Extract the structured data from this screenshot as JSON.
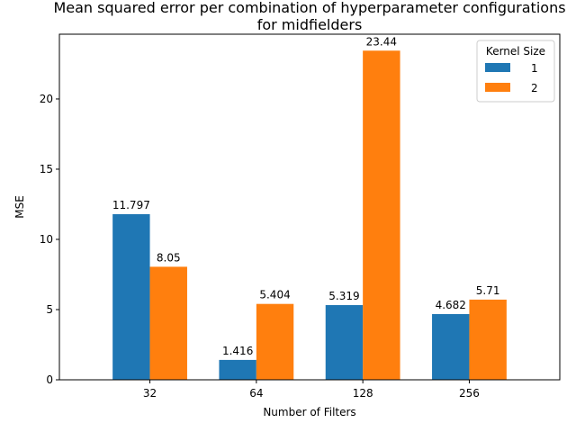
{
  "chart_data": {
    "type": "bar",
    "title": "Mean squared error per combination of hyperparameter configurations",
    "subtitle": "for midfielders",
    "xlabel": "Number of Filters",
    "ylabel": "MSE",
    "categories": [
      "32",
      "64",
      "128",
      "256"
    ],
    "series": [
      {
        "name": "1",
        "values": [
          11.797,
          1.416,
          5.319,
          4.682
        ],
        "labels": [
          "11.797",
          "1.416",
          "5.319",
          "4.682"
        ],
        "color": "#1f77b4"
      },
      {
        "name": "2",
        "values": [
          8.05,
          5.404,
          23.44,
          5.71
        ],
        "labels": [
          "8.05",
          "5.404",
          "23.44",
          "5.71"
        ],
        "color": "#ff7f0e"
      }
    ],
    "ylim": [
      0,
      24.612
    ],
    "yticks": [
      0,
      5,
      10,
      15,
      20
    ],
    "ytick_labels": [
      "0",
      "5",
      "10",
      "15",
      "20"
    ],
    "legend": {
      "title": "Kernel Size",
      "placement": "top-right"
    },
    "grid": false
  }
}
